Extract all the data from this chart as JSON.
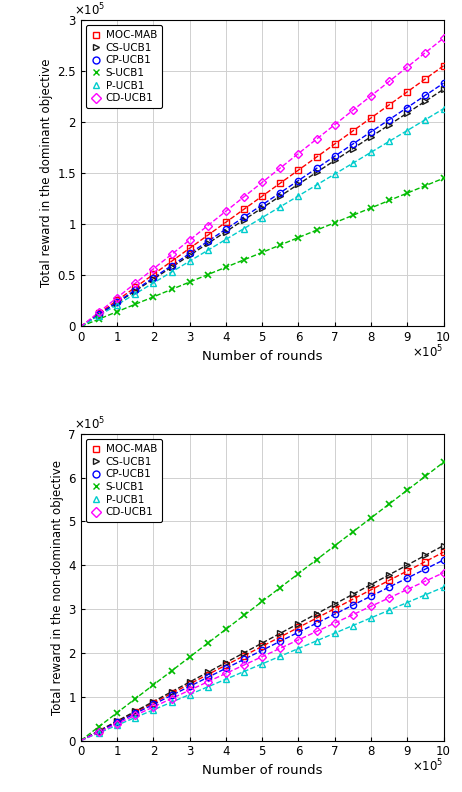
{
  "x_max": 1000000,
  "subplot1": {
    "ylabel": "Total reward in the dominant objective",
    "xlabel": "Number of rounds",
    "ylim": [
      0,
      300000
    ],
    "yticks": [
      0,
      50000,
      100000,
      150000,
      200000,
      250000,
      300000
    ],
    "xticks": [
      0,
      100000,
      200000,
      300000,
      400000,
      500000,
      600000,
      700000,
      800000,
      900000,
      1000000
    ],
    "series": [
      {
        "name": "MOC-MAB",
        "slope": 255000,
        "color": "#ff0000",
        "marker": "s"
      },
      {
        "name": "CS-UCB1",
        "slope": 232000,
        "color": "#1a1a1a",
        "marker": ">"
      },
      {
        "name": "CP-UCB1",
        "slope": 238000,
        "color": "#0000ff",
        "marker": "o"
      },
      {
        "name": "S-UCB1",
        "slope": 145000,
        "color": "#00bb00",
        "marker": "x"
      },
      {
        "name": "P-UCB1",
        "slope": 213000,
        "color": "#00cccc",
        "marker": "^"
      },
      {
        "name": "CD-UCB1",
        "slope": 282000,
        "color": "#ff00ff",
        "marker": "D"
      }
    ]
  },
  "subplot2": {
    "ylabel": "Total reward in the non-dominant objective",
    "xlabel": "Number of rounds",
    "ylim": [
      0,
      700000
    ],
    "yticks": [
      0,
      100000,
      200000,
      300000,
      400000,
      500000,
      600000,
      700000
    ],
    "xticks": [
      0,
      100000,
      200000,
      300000,
      400000,
      500000,
      600000,
      700000,
      800000,
      900000,
      1000000
    ],
    "series": [
      {
        "name": "MOC-MAB",
        "slope": 430000,
        "color": "#ff0000",
        "marker": "s"
      },
      {
        "name": "CS-UCB1",
        "slope": 445000,
        "color": "#1a1a1a",
        "marker": ">"
      },
      {
        "name": "CP-UCB1",
        "slope": 412000,
        "color": "#0000ff",
        "marker": "o"
      },
      {
        "name": "S-UCB1",
        "slope": 635000,
        "color": "#00bb00",
        "marker": "x"
      },
      {
        "name": "P-UCB1",
        "slope": 350000,
        "color": "#00cccc",
        "marker": "^"
      },
      {
        "name": "CD-UCB1",
        "slope": 383000,
        "color": "#ff00ff",
        "marker": "D"
      }
    ]
  }
}
